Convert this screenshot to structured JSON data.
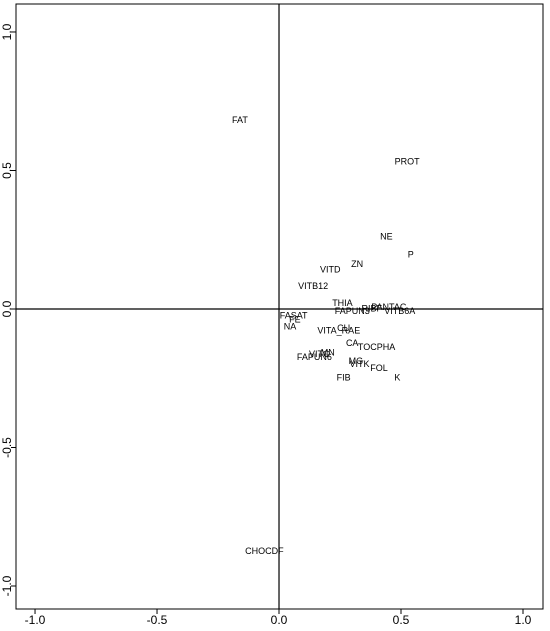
{
  "chart_data": {
    "type": "scatter",
    "labels": [
      "FAT",
      "PROT",
      "NE",
      "P",
      "ZN",
      "VITD",
      "VITB12",
      "THIA",
      "FAPUN3",
      "RIBF",
      "PANTAC",
      "VITB6A",
      "FASAT",
      "FE",
      "NA",
      "CU",
      "VITA_RAE",
      "CA",
      "TOCPHA",
      "MN",
      "VITC",
      "FAPUN6",
      "MG",
      "VITK",
      "FOL",
      "FIB",
      "K",
      "CHOCDF"
    ],
    "x": [
      -0.16,
      0.525,
      0.44,
      0.54,
      0.32,
      0.21,
      0.14,
      0.26,
      0.3,
      0.38,
      0.45,
      0.495,
      0.06,
      0.065,
      0.045,
      0.265,
      0.245,
      0.3,
      0.4,
      0.2,
      0.165,
      0.145,
      0.315,
      0.33,
      0.41,
      0.265,
      0.485,
      -0.06
    ],
    "y": [
      0.68,
      0.53,
      0.26,
      0.195,
      0.16,
      0.14,
      0.08,
      0.02,
      -0.01,
      0.0,
      0.005,
      -0.01,
      -0.025,
      -0.04,
      -0.065,
      -0.07,
      -0.08,
      -0.125,
      -0.14,
      -0.16,
      -0.165,
      -0.175,
      -0.19,
      -0.2,
      -0.215,
      -0.25,
      -0.25,
      -0.875
    ],
    "xlim": [
      -1.078,
      1.082
    ],
    "ylim": [
      -1.083,
      1.101
    ],
    "xticks": [
      {
        "value": -1,
        "label": "-1.0"
      },
      {
        "value": -0.5,
        "label": "-0.5"
      },
      {
        "value": 0,
        "label": "0.0"
      },
      {
        "value": 0.5,
        "label": "0.5"
      },
      {
        "value": 1,
        "label": "1.0"
      }
    ],
    "yticks": [
      {
        "value": -1,
        "label": "-1.0"
      },
      {
        "value": -0.5,
        "label": "-0.5"
      },
      {
        "value": 0,
        "label": "0.0"
      },
      {
        "value": 0.5,
        "label": "0.5"
      },
      {
        "value": 1,
        "label": "1.0"
      }
    ],
    "hline": 0,
    "vline": 0
  }
}
